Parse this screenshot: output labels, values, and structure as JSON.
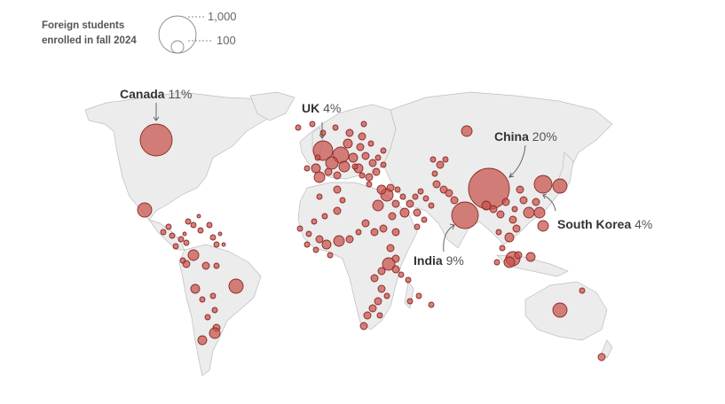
{
  "legend": {
    "title": "Foreign students enrolled in fall 2024",
    "large_value": "1,000",
    "small_value": "100"
  },
  "callouts": [
    {
      "id": "canada",
      "name": "Canada",
      "pct": "11%"
    },
    {
      "id": "uk",
      "name": "UK",
      "pct": "4%"
    },
    {
      "id": "china",
      "name": "China",
      "pct": "20%"
    },
    {
      "id": "south-korea",
      "name": "South Korea",
      "pct": "4%"
    },
    {
      "id": "india",
      "name": "India",
      "pct": "9%"
    }
  ],
  "colors": {
    "bubble_fill": "#c8504b",
    "bubble_stroke": "#8a2a25",
    "land": "#ececec",
    "border": "#b9b9b9"
  }
}
